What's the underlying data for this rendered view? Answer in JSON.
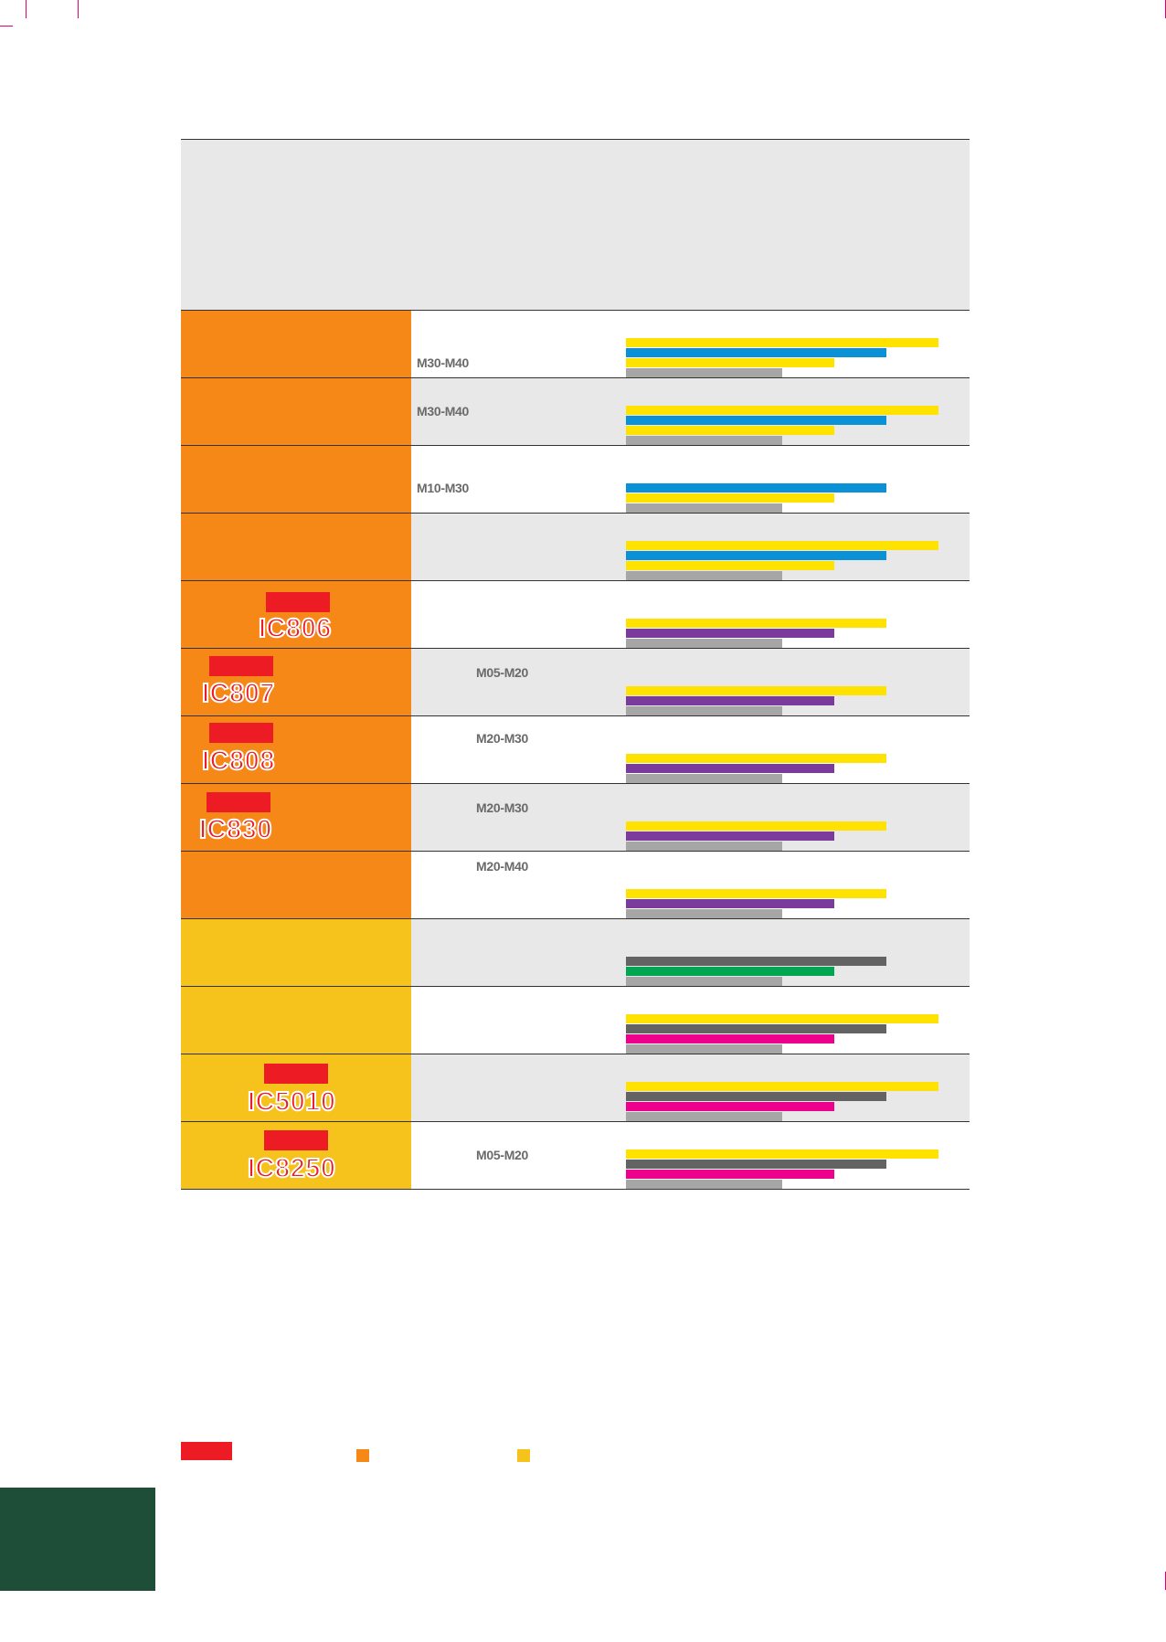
{
  "colors": {
    "orange": "#f58817",
    "yellow_cell": "#f5c31c",
    "badge_red": "#ed1c24",
    "bar_yellow": "#ffe200",
    "bar_blue": "#0b92d6",
    "bar_purple": "#7a3b9c",
    "bar_green": "#00a651",
    "bar_magenta": "#ec008c",
    "bar_darkgray": "#636363",
    "bar_lightgray": "#a6a6a6"
  },
  "rows": [
    {
      "cell_color": "#f58817",
      "badge": false,
      "grade": "",
      "range": "M30-M40",
      "bars": [
        {
          "color": "#ffe200",
          "value": 6
        },
        {
          "color": "#0b92d6",
          "value": 5
        },
        {
          "color": "#ffe200",
          "value": 4
        },
        {
          "color": "#a6a6a6",
          "value": 3
        }
      ]
    },
    {
      "cell_color": "#f58817",
      "badge": false,
      "grade": "",
      "range": "M30-M40",
      "bars": [
        {
          "color": "#ffe200",
          "value": 6
        },
        {
          "color": "#0b92d6",
          "value": 5
        },
        {
          "color": "#ffe200",
          "value": 4
        },
        {
          "color": "#a6a6a6",
          "value": 3
        }
      ]
    },
    {
      "cell_color": "#f58817",
      "badge": false,
      "grade": "",
      "range": "M10-M30",
      "bars": [
        {
          "color": "#0b92d6",
          "value": 5
        },
        {
          "color": "#ffe200",
          "value": 4
        },
        {
          "color": "#a6a6a6",
          "value": 3
        }
      ]
    },
    {
      "cell_color": "#f58817",
      "badge": false,
      "grade": "",
      "range": "",
      "bars": [
        {
          "color": "#ffe200",
          "value": 6
        },
        {
          "color": "#0b92d6",
          "value": 5
        },
        {
          "color": "#ffe200",
          "value": 4
        },
        {
          "color": "#a6a6a6",
          "value": 3
        }
      ]
    },
    {
      "cell_color": "#f58817",
      "badge": true,
      "grade": "IC806",
      "range": "",
      "bars": [
        {
          "color": "#ffe200",
          "value": 5
        },
        {
          "color": "#7a3b9c",
          "value": 4
        },
        {
          "color": "#a6a6a6",
          "value": 3
        }
      ]
    },
    {
      "cell_color": "#f58817",
      "badge": true,
      "grade": "IC807",
      "range": "M05-M20",
      "bars": [
        {
          "color": "#ffe200",
          "value": 5
        },
        {
          "color": "#7a3b9c",
          "value": 4
        },
        {
          "color": "#a6a6a6",
          "value": 3
        }
      ]
    },
    {
      "cell_color": "#f58817",
      "badge": true,
      "grade": "IC808",
      "range": "M20-M30",
      "bars": [
        {
          "color": "#ffe200",
          "value": 5
        },
        {
          "color": "#7a3b9c",
          "value": 4
        },
        {
          "color": "#a6a6a6",
          "value": 3
        }
      ]
    },
    {
      "cell_color": "#f58817",
      "badge": true,
      "grade": "IC830",
      "range": "M20-M30",
      "bars": [
        {
          "color": "#ffe200",
          "value": 5
        },
        {
          "color": "#7a3b9c",
          "value": 4
        },
        {
          "color": "#a6a6a6",
          "value": 3
        }
      ]
    },
    {
      "cell_color": "#f58817",
      "badge": false,
      "grade": "",
      "range": "M20-M40",
      "bars": [
        {
          "color": "#ffe200",
          "value": 5
        },
        {
          "color": "#7a3b9c",
          "value": 4
        },
        {
          "color": "#a6a6a6",
          "value": 3
        }
      ]
    },
    {
      "cell_color": "#f5c31c",
      "badge": false,
      "grade": "",
      "range": "",
      "bars": [
        {
          "color": "#636363",
          "value": 5
        },
        {
          "color": "#00a651",
          "value": 4
        },
        {
          "color": "#a6a6a6",
          "value": 3
        }
      ]
    },
    {
      "cell_color": "#f5c31c",
      "badge": false,
      "grade": "",
      "range": "",
      "bars": [
        {
          "color": "#ffe200",
          "value": 6
        },
        {
          "color": "#636363",
          "value": 5
        },
        {
          "color": "#ec008c",
          "value": 4
        },
        {
          "color": "#a6a6a6",
          "value": 3
        }
      ]
    },
    {
      "cell_color": "#f5c31c",
      "badge": true,
      "grade": "IC5010",
      "range": "",
      "bars": [
        {
          "color": "#ffe200",
          "value": 6
        },
        {
          "color": "#636363",
          "value": 5
        },
        {
          "color": "#ec008c",
          "value": 4
        },
        {
          "color": "#a6a6a6",
          "value": 3
        }
      ]
    },
    {
      "cell_color": "#f5c31c",
      "badge": true,
      "grade": "IC8250",
      "range": "M05-M20",
      "bars": [
        {
          "color": "#ffe200",
          "value": 6
        },
        {
          "color": "#636363",
          "value": 5
        },
        {
          "color": "#ec008c",
          "value": 4
        },
        {
          "color": "#a6a6a6",
          "value": 3
        }
      ]
    }
  ],
  "legend": [
    {
      "color": "#ed1c24",
      "shape": "badge"
    },
    {
      "color": "#f58817",
      "shape": "square"
    },
    {
      "color": "#f5c31c",
      "shape": "square"
    }
  ]
}
